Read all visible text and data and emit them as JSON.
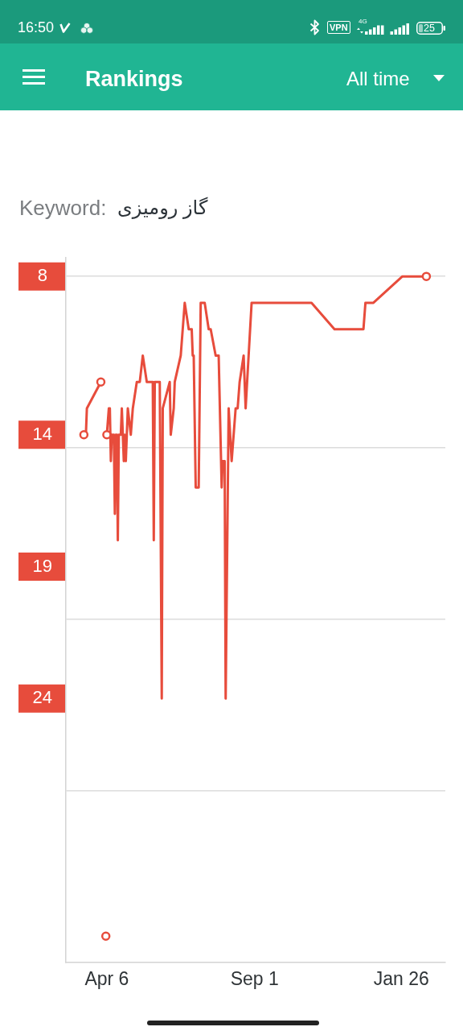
{
  "chart_data": {
    "type": "line",
    "title": "Rankings",
    "annotations": [
      "All time",
      "Keyword:",
      "گاز رومیزی",
      "16:50",
      "VPN",
      "4G",
      "25"
    ],
    "categories": [
      null,
      null,
      null,
      null,
      null,
      null,
      null,
      null,
      null,
      null,
      null,
      null,
      null,
      null,
      null,
      null,
      null,
      null,
      null,
      null,
      null,
      null,
      null,
      null,
      null,
      null,
      null,
      null,
      null,
      null,
      null,
      null,
      null,
      null,
      null,
      null,
      null,
      null,
      null,
      null,
      null,
      "Apr 6",
      null,
      null,
      null,
      null,
      null,
      null,
      null,
      null,
      null,
      null,
      null,
      null,
      null,
      null,
      null,
      null,
      null,
      null,
      null,
      null,
      null,
      null,
      null,
      null,
      null,
      null,
      null,
      null,
      null,
      null,
      null,
      null,
      null,
      null,
      null,
      null,
      null,
      null,
      null,
      null,
      null,
      null,
      null,
      null,
      null,
      null,
      null,
      null,
      null,
      null,
      null,
      null,
      null,
      null,
      null,
      null,
      null,
      null,
      null,
      null,
      null,
      null,
      null,
      null,
      null,
      null,
      null,
      null,
      null,
      null,
      null,
      null,
      null,
      null,
      null,
      null,
      null,
      null,
      null,
      null,
      null,
      null,
      null,
      null,
      null,
      null,
      null,
      null,
      null,
      null,
      null,
      null,
      null,
      null,
      null,
      null,
      null,
      null,
      null,
      null,
      null,
      null,
      null,
      null,
      null,
      null,
      null,
      null,
      null,
      null,
      null,
      null,
      null,
      null,
      null,
      null,
      null,
      null,
      null,
      null,
      null,
      null,
      null,
      null,
      null,
      null,
      null,
      null,
      null,
      null,
      null,
      null,
      null,
      null,
      null,
      null,
      null,
      null,
      null,
      null,
      null,
      null,
      null,
      null,
      null,
      null,
      null,
      "Sep 1",
      null,
      null,
      null,
      null,
      null,
      null,
      null,
      null,
      null,
      null,
      null,
      null,
      null,
      null,
      null,
      null,
      null,
      null,
      null,
      null,
      null,
      null,
      null,
      null,
      null,
      null,
      null,
      null,
      null,
      null,
      null,
      null,
      null,
      null,
      null,
      null,
      null,
      null,
      null,
      null,
      null,
      null,
      null,
      null,
      null,
      null,
      null,
      null,
      null,
      null,
      null,
      null,
      null,
      null,
      null,
      null,
      null,
      null,
      null,
      null,
      null,
      null,
      null,
      null,
      null,
      null,
      null,
      null,
      null,
      null,
      null,
      null,
      null,
      null,
      null,
      null,
      null,
      null,
      null,
      null,
      null,
      null,
      null,
      null,
      null,
      null,
      null,
      null,
      null,
      null,
      null,
      null,
      null,
      null,
      null,
      null,
      null,
      null,
      null,
      null,
      null,
      null,
      null,
      null,
      null,
      null,
      null,
      null,
      null,
      null,
      null,
      null,
      null,
      null,
      null,
      null,
      null,
      null,
      null,
      null,
      null,
      null,
      null,
      null,
      null,
      null,
      null,
      null,
      null,
      null,
      null,
      null,
      null,
      null,
      null,
      null,
      null,
      null,
      null,
      null,
      null,
      null,
      null,
      null,
      null,
      null,
      "Jan 26",
      null,
      null,
      null,
      null,
      null,
      null,
      null,
      null,
      null,
      null,
      null,
      null,
      null,
      null,
      null,
      null,
      null,
      null,
      null,
      null,
      null,
      null,
      null,
      null,
      null,
      null,
      null,
      null,
      null,
      null,
      null,
      null,
      null,
      null,
      null,
      null,
      null,
      null,
      null,
      null,
      null,
      null,
      null,
      null
    ],
    "series": [
      {
        "color": "#e74c3c",
        "values": [
          null,
          null,
          null,
          null,
          null,
          null,
          null,
          null,
          null,
          null,
          null,
          null,
          null,
          null,
          null,
          null,
          null,
          null,
          14,
          null,
          14,
          13,
          null,
          null,
          null,
          null,
          null,
          null,
          null,
          null,
          null,
          null,
          null,
          null,
          null,
          12,
          null,
          null,
          null,
          null,
          null,
          null,
          null,
          null,
          null,
          null,
          null,
          null,
          null,
          null,
          null,
          null,
          null,
          null,
          null,
          null,
          null,
          null,
          null,
          null,
          null,
          null,
          null,
          null,
          null,
          null,
          null,
          null,
          null,
          null,
          null,
          null,
          null,
          null,
          null,
          null,
          null,
          null,
          null,
          null,
          null,
          null,
          null,
          null,
          null,
          null,
          null,
          null,
          null,
          null,
          null,
          null,
          null,
          null,
          null,
          null,
          null,
          null,
          null,
          null,
          null,
          null,
          null,
          null,
          null,
          null,
          null,
          null,
          null,
          null,
          null,
          null,
          null,
          null,
          null,
          null,
          null,
          null,
          null,
          null,
          null,
          null,
          null,
          null,
          null,
          null,
          null,
          null,
          null,
          null,
          null,
          null,
          null,
          null,
          null,
          null,
          null,
          null,
          null,
          null,
          null,
          null,
          null,
          null,
          null,
          null,
          null,
          null,
          null,
          null,
          null,
          null,
          null,
          null,
          null,
          null,
          null,
          null,
          null,
          null,
          null,
          null,
          null,
          null,
          null,
          null,
          null,
          null,
          null,
          null,
          null,
          null,
          null,
          null,
          null,
          null,
          null,
          null,
          null,
          null,
          null,
          null,
          null,
          null,
          null,
          null,
          null,
          null,
          null,
          null,
          null,
          null,
          null,
          null,
          null,
          null,
          null,
          null,
          null,
          null,
          null,
          null,
          null,
          null,
          null,
          null,
          null,
          null,
          null,
          null,
          null,
          null,
          null,
          null,
          null,
          null,
          null,
          null,
          null,
          null,
          null,
          null,
          null,
          null,
          null,
          null,
          null,
          null,
          null,
          null,
          null,
          null,
          null,
          null,
          null,
          null,
          null,
          null,
          null,
          null,
          null,
          null,
          null,
          null,
          null,
          null,
          null,
          null,
          null,
          null,
          null,
          null,
          null,
          null,
          null,
          null,
          null,
          null,
          null,
          null,
          null,
          null,
          null,
          null,
          null,
          null,
          null,
          null,
          null,
          null,
          null,
          null,
          null,
          null,
          null,
          null,
          null,
          null,
          null,
          null,
          null,
          null,
          null,
          null,
          null,
          null,
          null,
          null,
          null,
          null,
          null,
          null,
          null,
          null,
          null,
          null,
          null,
          null,
          null,
          null,
          null,
          null,
          null,
          null,
          null,
          null,
          null,
          null,
          null,
          null,
          null,
          null,
          null,
          null,
          null,
          null,
          null,
          null,
          null,
          null,
          null,
          null,
          null,
          null,
          null,
          null,
          null,
          null,
          null,
          null,
          null,
          null,
          null,
          null,
          null,
          null,
          null,
          null,
          null,
          null,
          null,
          null,
          null,
          null,
          null,
          null,
          null,
          null,
          null,
          null,
          null,
          null,
          null,
          null,
          null,
          null,
          null,
          null,
          null,
          null,
          null,
          null,
          null,
          null,
          null,
          null,
          null,
          null,
          null,
          null,
          null,
          null,
          null,
          null,
          null,
          null,
          null,
          null,
          null,
          null,
          null
        ]
      },
      {
        "color": "#e74c3c",
        "values": [
          null,
          null,
          null,
          null,
          null,
          null,
          null,
          null,
          null,
          null,
          null,
          null,
          null,
          null,
          null,
          null,
          null,
          null,
          null,
          null,
          null,
          null,
          null,
          null,
          null,
          null,
          null,
          null,
          null,
          null,
          null,
          null,
          null,
          null,
          null,
          null,
          null,
          null,
          null,
          null,
          null,
          14,
          null,
          13,
          13,
          15,
          14,
          null,
          14,
          17,
          14,
          14,
          18,
          14,
          null,
          14,
          13,
          null,
          15,
          14,
          15,
          null,
          13,
          null,
          null,
          14,
          null,
          13,
          null,
          null,
          null,
          12,
          null,
          null,
          12,
          null,
          null,
          11,
          null,
          null,
          null,
          12,
          null,
          null,
          null,
          null,
          null,
          12,
          18,
          12,
          null,
          null,
          null,
          null,
          12,
          null,
          24,
          13,
          null,
          null,
          null,
          null,
          null,
          null,
          12,
          14,
          null,
          null,
          13,
          12,
          null,
          null,
          null,
          null,
          null,
          11,
          null,
          10,
          null,
          9,
          null,
          null,
          null,
          10,
          null,
          null,
          10,
          11,
          11,
          null,
          16,
          null,
          null,
          16,
          null,
          9,
          null,
          null,
          null,
          9,
          null,
          null,
          null,
          10,
          null,
          10,
          null,
          null,
          null,
          null,
          11,
          null,
          null,
          11,
          null,
          null,
          16,
          15,
          null,
          15,
          24,
          null,
          null,
          13,
          null,
          null,
          15,
          null,
          null,
          null,
          13,
          null,
          13,
          null,
          12,
          null,
          null,
          null,
          11,
          null,
          13,
          null,
          null,
          null,
          null,
          null,
          9,
          null,
          null,
          null,
          null,
          null,
          null,
          null,
          null,
          null,
          null,
          null,
          null,
          null,
          null,
          null,
          null,
          null,
          null,
          null,
          null,
          null,
          null,
          null,
          null,
          null,
          null,
          null,
          null,
          null,
          null,
          null,
          null,
          null,
          null,
          null,
          null,
          null,
          null,
          null,
          null,
          null,
          null,
          null,
          null,
          null,
          null,
          null,
          null,
          null,
          null,
          null,
          null,
          null,
          null,
          null,
          null,
          null,
          null,
          null,
          9,
          null,
          null,
          null,
          null,
          null,
          null,
          null,
          null,
          null,
          null,
          null,
          null,
          null,
          null,
          null,
          null,
          null,
          null,
          null,
          null,
          null,
          null,
          10,
          null,
          null,
          null,
          null,
          null,
          null,
          null,
          null,
          null,
          null,
          null,
          null,
          null,
          null,
          null,
          null,
          null,
          null,
          null,
          null,
          null,
          null,
          null,
          null,
          null,
          null,
          null,
          null,
          10,
          null,
          9,
          null,
          null,
          null,
          null,
          null,
          null,
          null,
          9,
          null,
          null,
          null,
          null,
          null,
          null,
          null,
          null,
          null,
          null,
          null,
          null,
          null,
          null,
          null,
          null,
          null,
          null,
          null,
          null,
          null,
          null,
          null,
          null,
          null,
          null,
          null,
          null,
          8,
          null,
          null,
          null,
          null,
          null,
          null,
          null,
          null,
          null,
          null,
          null,
          null,
          null,
          null,
          null,
          null,
          null,
          null,
          null,
          null,
          null,
          null,
          null,
          8,
          null,
          null,
          null,
          null,
          null,
          null,
          null,
          null,
          null,
          null,
          null,
          null,
          null,
          null,
          null,
          null,
          null,
          null,
          null
        ]
      },
      {
        "type": "scatter",
        "marker": "circle",
        "color": "#e74c3c",
        "values": [
          null,
          null,
          null,
          null,
          null,
          null,
          null,
          null,
          null,
          null,
          null,
          null,
          null,
          null,
          null,
          null,
          null,
          null,
          14,
          null,
          null,
          null,
          null,
          null,
          null,
          null,
          null,
          null,
          null,
          null,
          null,
          null,
          null,
          null,
          null,
          12,
          null,
          null,
          null,
          null,
          33,
          14,
          null,
          null,
          null,
          null,
          null,
          null,
          null,
          null,
          null,
          null,
          null,
          null,
          null,
          null,
          null,
          null,
          null,
          null,
          null,
          null,
          null,
          null,
          null,
          null,
          null,
          null,
          null,
          null,
          null,
          null,
          null,
          null,
          null,
          null,
          null,
          null,
          null,
          null,
          null,
          null,
          null,
          null,
          null,
          null,
          null,
          null,
          null,
          null,
          null,
          null,
          null,
          null,
          null,
          null,
          null,
          null,
          null,
          null,
          null,
          null,
          null,
          null,
          null,
          null,
          null,
          null,
          null,
          null,
          null,
          null,
          null,
          null,
          null,
          null,
          null,
          null,
          null,
          null,
          null,
          null,
          null,
          null,
          null,
          null,
          null,
          null,
          null,
          null,
          null,
          null,
          null,
          null,
          null,
          null,
          null,
          null,
          null,
          null,
          null,
          null,
          null,
          null,
          null,
          null,
          null,
          null,
          null,
          null,
          null,
          null,
          null,
          null,
          null,
          null,
          null,
          null,
          null,
          null,
          null,
          null,
          null,
          null,
          null,
          null,
          null,
          null,
          null,
          null,
          null,
          null,
          null,
          null,
          null,
          null,
          null,
          null,
          null,
          null,
          null,
          null,
          null,
          null,
          null,
          null,
          null,
          null,
          null,
          null,
          null,
          null,
          null,
          null,
          null,
          null,
          null,
          null,
          null,
          null,
          null,
          null,
          null,
          null,
          null,
          null,
          null,
          null,
          null,
          null,
          null,
          null,
          null,
          null,
          null,
          null,
          null,
          null,
          null,
          null,
          null,
          null,
          null,
          null,
          null,
          null,
          null,
          null,
          null,
          null,
          null,
          null,
          null,
          null,
          null,
          null,
          null,
          null,
          null,
          null,
          null,
          null,
          null,
          null,
          null,
          null,
          null,
          null,
          null,
          null,
          null,
          null,
          null,
          null,
          null,
          null,
          null,
          null,
          null,
          null,
          null,
          null,
          null,
          null,
          null,
          null,
          null,
          null,
          null,
          null,
          null,
          null,
          null,
          null,
          null,
          null,
          null,
          null,
          null,
          null,
          null,
          null,
          null,
          null,
          null,
          null,
          null,
          null,
          null,
          null,
          null,
          null,
          null,
          null,
          null,
          null,
          null,
          null,
          null,
          null,
          null,
          null,
          null,
          null,
          null,
          null,
          null,
          null,
          null,
          null,
          null,
          null,
          null,
          null,
          null,
          null,
          null,
          null,
          null,
          null,
          null,
          null,
          null,
          null,
          null,
          null,
          null,
          null,
          null,
          null,
          null,
          null,
          null,
          null,
          null,
          null,
          null,
          null,
          null,
          null,
          null,
          null,
          null,
          null,
          null,
          null,
          null,
          null,
          null,
          null,
          null,
          null,
          null,
          null,
          null,
          null,
          null,
          null,
          null,
          null,
          null,
          8,
          null,
          null,
          null,
          null,
          null,
          null,
          null,
          null,
          null,
          null,
          null,
          null,
          null,
          null,
          null,
          null,
          null,
          null,
          null
        ]
      }
    ],
    "ylim": [
      34,
      7.3
    ],
    "yticks": [
      8,
      14,
      {
        "value": 14.5,
        "label": null
      },
      19,
      {
        "value": 21,
        "label": null
      },
      24,
      {
        "value": 27.5,
        "label": null
      }
    ],
    "grid": "y"
  }
}
